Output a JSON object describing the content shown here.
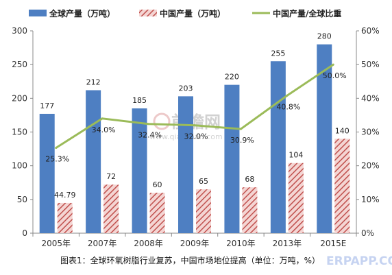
{
  "chart_data": {
    "type": "bar",
    "categories": [
      "2005年",
      "2007年",
      "2008年",
      "2009年",
      "2010年",
      "2013年",
      "2015E"
    ],
    "series": [
      {
        "name": "全球产量（万吨）",
        "kind": "bar",
        "axis": "left",
        "values": [
          177,
          212,
          185,
          203,
          220,
          255,
          280
        ],
        "labels": [
          "177",
          "212",
          "185",
          "203",
          "220",
          "255",
          "280"
        ],
        "color": "#4e7fc2"
      },
      {
        "name": "中国产量（万吨）",
        "kind": "bar-hatched",
        "axis": "left",
        "values": [
          44.79,
          72,
          60,
          65,
          68,
          104,
          140
        ],
        "labels": [
          "44.79",
          "72",
          "60",
          "65",
          "68",
          "104",
          "140"
        ],
        "color": "#c0504d"
      },
      {
        "name": "中国产量/全球比重",
        "kind": "line",
        "axis": "right",
        "values": [
          25.3,
          34.0,
          32.4,
          32.0,
          30.9,
          40.8,
          50.0
        ],
        "labels": [
          "25.3%",
          "34.0%",
          "32.4%",
          "32.0%",
          "30.9%",
          "40.8%",
          "50.0%"
        ],
        "color": "#9bbb59"
      }
    ],
    "yleft": {
      "min": 0,
      "max": 300,
      "ticks": [
        "0",
        "50",
        "100",
        "150",
        "200",
        "250",
        "300"
      ]
    },
    "yright": {
      "min": 0,
      "max": 60,
      "ticks": [
        "0%",
        "10%",
        "20%",
        "30%",
        "40%",
        "50%",
        "60%"
      ]
    },
    "legend_position": "top",
    "grid": false,
    "caption": "图表1：全球环氧树脂行业复苏，中国市场地位提高（单位：万吨，%）"
  },
  "watermarks": {
    "logo_text": "前瞻网",
    "logo_url": "www.qianzhan.com",
    "corner_text": "ERPAPP.COM"
  }
}
